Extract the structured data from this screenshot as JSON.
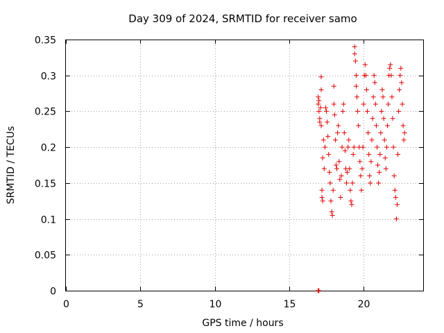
{
  "chart_data": {
    "type": "scatter",
    "title": "Day 309 of 2024, SRMTID for receiver samo",
    "xlabel": "GPS time / hours",
    "ylabel": "SRMTID / TECUs",
    "xlim": [
      0,
      24
    ],
    "ylim": [
      0,
      0.35
    ],
    "grid": true,
    "legend": "none",
    "color": "#e00000",
    "x_ticks": [
      {
        "value": 0,
        "label": "0"
      },
      {
        "value": 5,
        "label": "5"
      },
      {
        "value": 10,
        "label": "10"
      },
      {
        "value": 15,
        "label": "15"
      },
      {
        "value": 20,
        "label": "20"
      }
    ],
    "y_ticks": [
      {
        "value": 0,
        "label": "0"
      },
      {
        "value": 0.05,
        "label": "0.05"
      },
      {
        "value": 0.1,
        "label": "0.1"
      },
      {
        "value": 0.15,
        "label": "0.15"
      },
      {
        "value": 0.2,
        "label": "0.2"
      },
      {
        "value": 0.25,
        "label": "0.25"
      },
      {
        "value": 0.3,
        "label": "0.3"
      },
      {
        "value": 0.35,
        "label": "0.35"
      }
    ],
    "series": [
      {
        "name": "SRMTID",
        "marker": "+",
        "points": [
          [
            16.95,
            0.0
          ],
          [
            16.95,
            0.0
          ],
          [
            17.0,
            0.0
          ],
          [
            16.95,
            0.27
          ],
          [
            16.95,
            0.26
          ],
          [
            17.0,
            0.25
          ],
          [
            17.0,
            0.265
          ],
          [
            17.05,
            0.24
          ],
          [
            17.05,
            0.235
          ],
          [
            17.1,
            0.255
          ],
          [
            17.15,
            0.28
          ],
          [
            17.15,
            0.23
          ],
          [
            17.2,
            0.14
          ],
          [
            17.2,
            0.13
          ],
          [
            17.25,
            0.125
          ],
          [
            17.15,
            0.298
          ],
          [
            17.25,
            0.185
          ],
          [
            17.3,
            0.21
          ],
          [
            17.35,
            0.17
          ],
          [
            17.4,
            0.2
          ],
          [
            17.45,
            0.255
          ],
          [
            17.5,
            0.25
          ],
          [
            17.55,
            0.235
          ],
          [
            17.6,
            0.215
          ],
          [
            17.65,
            0.19
          ],
          [
            17.7,
            0.165
          ],
          [
            17.75,
            0.15
          ],
          [
            17.8,
            0.125
          ],
          [
            17.85,
            0.11
          ],
          [
            17.9,
            0.105
          ],
          [
            17.95,
            0.14
          ],
          [
            18.0,
            0.26
          ],
          [
            18.0,
            0.285
          ],
          [
            18.05,
            0.245
          ],
          [
            18.1,
            0.21
          ],
          [
            18.15,
            0.175
          ],
          [
            18.2,
            0.17
          ],
          [
            18.25,
            0.22
          ],
          [
            18.3,
            0.23
          ],
          [
            18.35,
            0.18
          ],
          [
            18.4,
            0.155
          ],
          [
            18.45,
            0.13
          ],
          [
            18.5,
            0.16
          ],
          [
            18.55,
            0.2
          ],
          [
            18.6,
            0.25
          ],
          [
            18.65,
            0.26
          ],
          [
            18.7,
            0.22
          ],
          [
            18.75,
            0.195
          ],
          [
            18.8,
            0.17
          ],
          [
            18.85,
            0.15
          ],
          [
            18.9,
            0.165
          ],
          [
            18.95,
            0.2
          ],
          [
            19.0,
            0.21
          ],
          [
            19.05,
            0.17
          ],
          [
            19.1,
            0.14
          ],
          [
            19.15,
            0.125
          ],
          [
            19.2,
            0.12
          ],
          [
            19.25,
            0.15
          ],
          [
            19.3,
            0.19
          ],
          [
            19.35,
            0.2
          ],
          [
            19.4,
            0.34
          ],
          [
            19.4,
            0.33
          ],
          [
            19.45,
            0.32
          ],
          [
            19.5,
            0.3
          ],
          [
            19.5,
            0.285
          ],
          [
            19.55,
            0.27
          ],
          [
            19.6,
            0.25
          ],
          [
            19.65,
            0.23
          ],
          [
            19.7,
            0.2
          ],
          [
            19.75,
            0.18
          ],
          [
            19.8,
            0.16
          ],
          [
            19.85,
            0.14
          ],
          [
            19.9,
            0.17
          ],
          [
            19.95,
            0.2
          ],
          [
            20.0,
            0.26
          ],
          [
            20.05,
            0.3
          ],
          [
            20.1,
            0.315
          ],
          [
            20.15,
            0.3
          ],
          [
            20.2,
            0.28
          ],
          [
            20.25,
            0.25
          ],
          [
            20.3,
            0.22
          ],
          [
            20.35,
            0.19
          ],
          [
            20.4,
            0.16
          ],
          [
            20.45,
            0.15
          ],
          [
            20.5,
            0.18
          ],
          [
            20.55,
            0.21
          ],
          [
            20.6,
            0.24
          ],
          [
            20.65,
            0.27
          ],
          [
            20.7,
            0.3
          ],
          [
            20.75,
            0.29
          ],
          [
            20.8,
            0.26
          ],
          [
            20.85,
            0.23
          ],
          [
            20.9,
            0.2
          ],
          [
            20.95,
            0.175
          ],
          [
            21.0,
            0.15
          ],
          [
            21.05,
            0.165
          ],
          [
            21.1,
            0.19
          ],
          [
            21.15,
            0.22
          ],
          [
            21.2,
            0.25
          ],
          [
            21.25,
            0.28
          ],
          [
            21.3,
            0.27
          ],
          [
            21.35,
            0.24
          ],
          [
            21.4,
            0.21
          ],
          [
            21.45,
            0.185
          ],
          [
            21.5,
            0.17
          ],
          [
            21.55,
            0.2
          ],
          [
            21.6,
            0.23
          ],
          [
            21.65,
            0.26
          ],
          [
            21.7,
            0.3
          ],
          [
            21.75,
            0.31
          ],
          [
            21.8,
            0.315
          ],
          [
            21.85,
            0.3
          ],
          [
            21.9,
            0.27
          ],
          [
            21.95,
            0.24
          ],
          [
            22.0,
            0.2
          ],
          [
            22.05,
            0.16
          ],
          [
            22.1,
            0.14
          ],
          [
            22.15,
            0.13
          ],
          [
            22.2,
            0.1
          ],
          [
            22.25,
            0.12
          ],
          [
            22.3,
            0.19
          ],
          [
            22.35,
            0.25
          ],
          [
            22.4,
            0.28
          ],
          [
            22.45,
            0.3
          ],
          [
            22.5,
            0.31
          ],
          [
            22.55,
            0.29
          ],
          [
            22.6,
            0.26
          ],
          [
            22.65,
            0.23
          ],
          [
            22.7,
            0.21
          ],
          [
            22.75,
            0.22
          ]
        ]
      }
    ]
  }
}
